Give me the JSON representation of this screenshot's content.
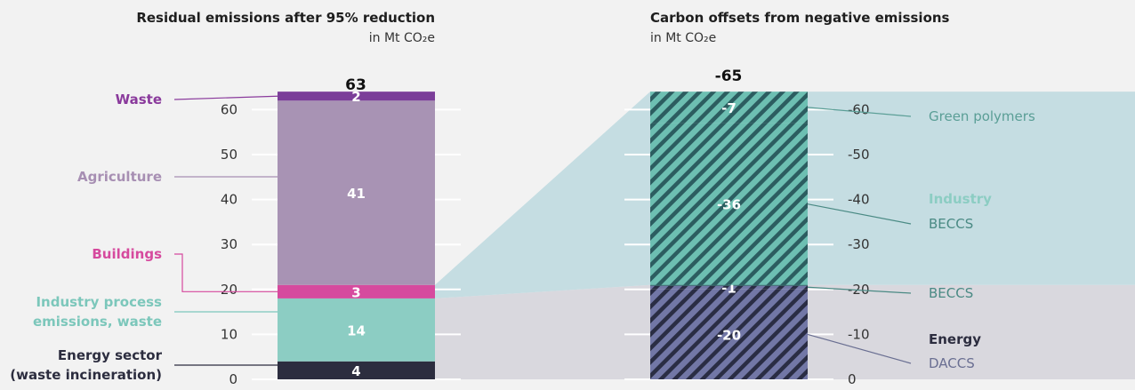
{
  "left": {
    "title": "Residual emissions after 95% reduction",
    "unit": "in Mt CO₂e",
    "total": "63",
    "ticks": [
      "0",
      "10",
      "20",
      "30",
      "40",
      "50",
      "60"
    ],
    "categories": [
      {
        "label_lines": [
          "Energy sector",
          "(waste incineration)"
        ],
        "value": "4",
        "color": "#2c2d3f",
        "label_color": "#2c2d3f"
      },
      {
        "label_lines": [
          "Industry process",
          "emissions, waste"
        ],
        "value": "14",
        "color": "#8ccdc3",
        "label_color": "#7cc7bb"
      },
      {
        "label_lines": [
          "Buildings"
        ],
        "value": "3",
        "color": "#d64a9e",
        "label_color": "#d64a9e"
      },
      {
        "label_lines": [
          "Agriculture"
        ],
        "value": "41",
        "color": "#a893b4",
        "label_color": "#a78fb3"
      },
      {
        "label_lines": [
          "Waste"
        ],
        "value": "2",
        "color": "#7b3e99",
        "label_color": "#8a3a9c"
      }
    ]
  },
  "right": {
    "title": "Carbon offsets from negative emissions",
    "unit": "in Mt CO₂e",
    "total": "-65",
    "ticks": [
      "0",
      "-10",
      "-20",
      "-30",
      "-40",
      "-50",
      "-60"
    ],
    "groups": [
      {
        "name": "Energy",
        "name_color": "#2c2d3f"
      },
      {
        "name": "Industry",
        "name_color": "#8ccdc3"
      }
    ],
    "segments": [
      {
        "value": "-20",
        "label": "DACCS",
        "label_color": "#6a6f92",
        "group": "Energy"
      },
      {
        "value": "-1",
        "label": "BECCS",
        "label_color": "#4a8a84",
        "group": "Energy"
      },
      {
        "value": "-36",
        "label": "BECCS",
        "label_color": "#4a8a84",
        "group": "Industry"
      },
      {
        "value": "-7",
        "label": "Green polymers",
        "label_color": "#5a9e96",
        "group": "Industry"
      }
    ]
  },
  "chart_data": [
    {
      "type": "bar",
      "title": "Residual emissions after 95% reduction",
      "ylabel": "in Mt CO₂e",
      "ylim": [
        0,
        65
      ],
      "stacked": true,
      "series": [
        {
          "name": "Energy sector (waste incineration)",
          "values": [
            4
          ]
        },
        {
          "name": "Industry process emissions, waste",
          "values": [
            14
          ]
        },
        {
          "name": "Buildings",
          "values": [
            3
          ]
        },
        {
          "name": "Agriculture",
          "values": [
            41
          ]
        },
        {
          "name": "Waste",
          "values": [
            2
          ]
        }
      ],
      "total": 63
    },
    {
      "type": "bar",
      "title": "Carbon offsets from negative emissions",
      "ylabel": "in Mt CO₂e",
      "ylim": [
        -65,
        0
      ],
      "stacked": true,
      "series": [
        {
          "name": "Energy DACCS",
          "values": [
            -20
          ]
        },
        {
          "name": "Energy BECCS",
          "values": [
            -1
          ]
        },
        {
          "name": "Industry BECCS",
          "values": [
            -36
          ]
        },
        {
          "name": "Industry Green polymers",
          "values": [
            -7
          ]
        }
      ],
      "total": -65
    }
  ]
}
